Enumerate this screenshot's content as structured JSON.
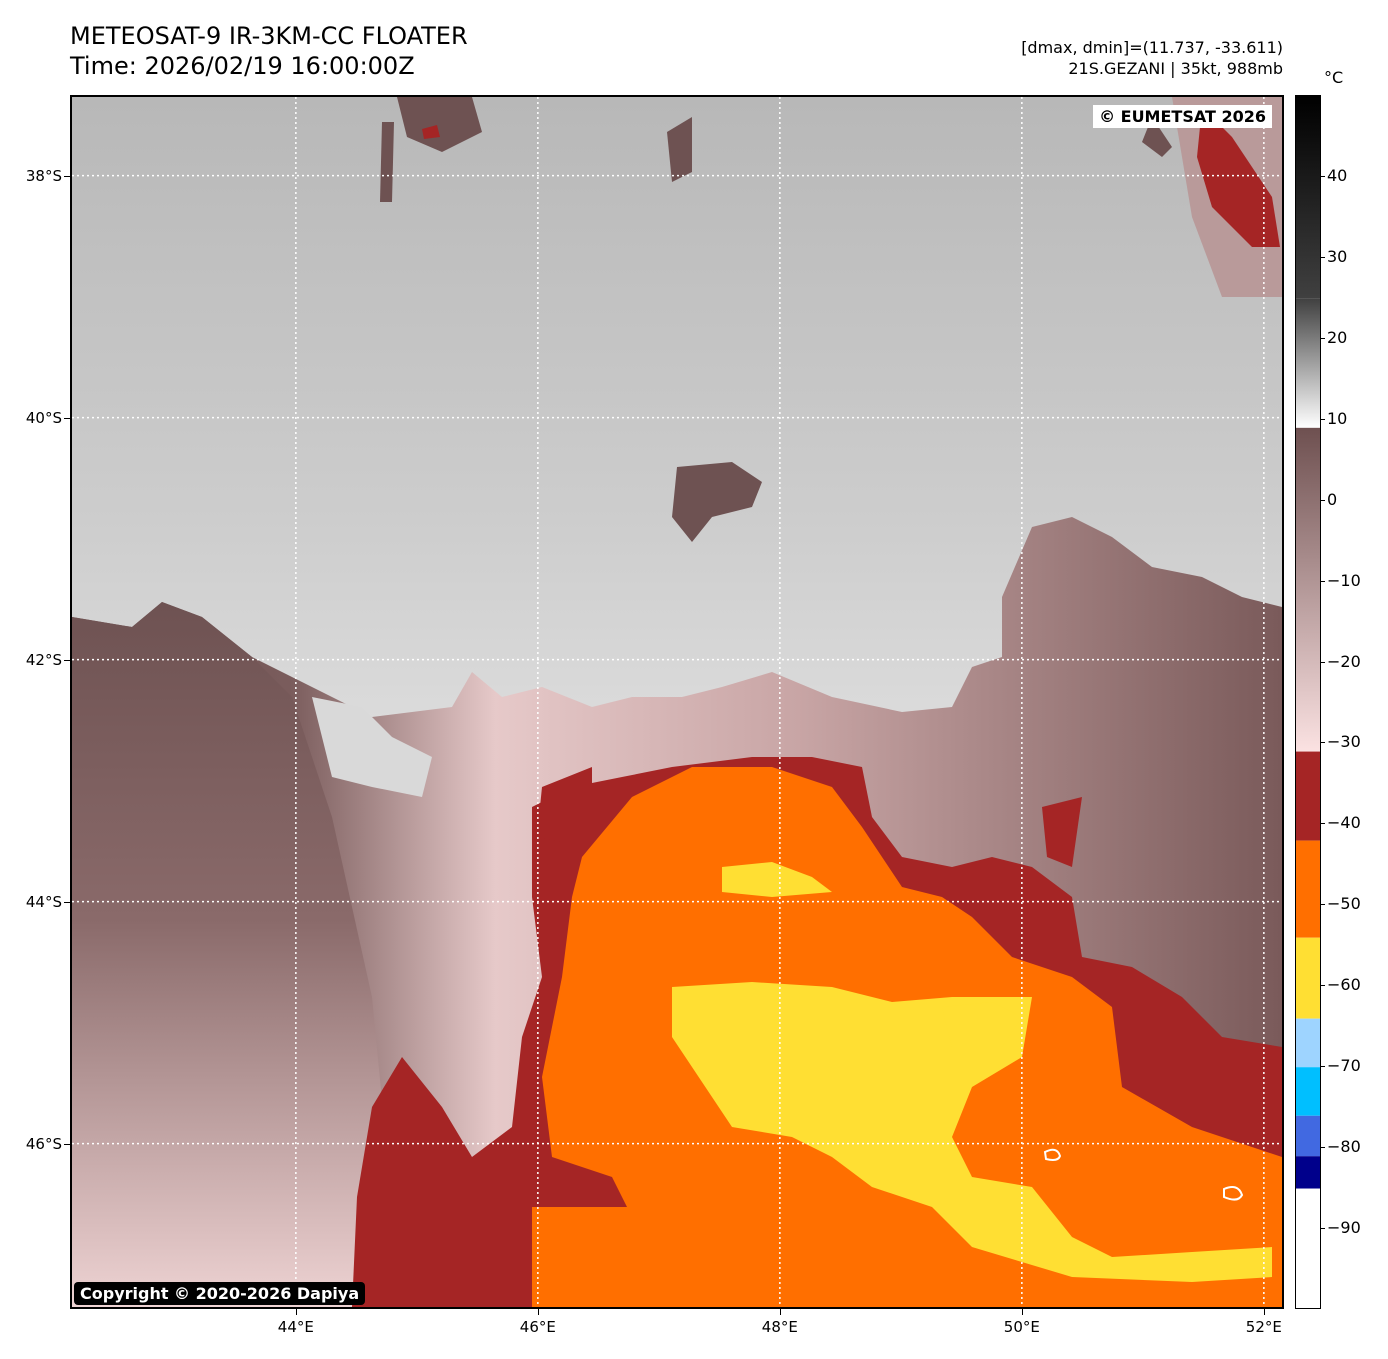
{
  "header": {
    "title_line1": "METEOSAT-9 IR-3KM-CC FLOATER",
    "title_line2": "Time: 2026/02/19 16:00:00Z",
    "info_line1": "[dmax, dmin]=(11.737, -33.611)",
    "info_line2": "21S.GEZANI | 35kt, 988mb"
  },
  "map": {
    "eumetsat_credit": "© EUMETSAT 2026",
    "copyright": "Copyright © 2020-2026 Dapiya",
    "lat_ticks": [
      {
        "value": -38,
        "label": "38°S"
      },
      {
        "value": -40,
        "label": "40°S"
      },
      {
        "value": -42,
        "label": "42°S"
      },
      {
        "value": -44,
        "label": "44°S"
      },
      {
        "value": -46,
        "label": "46°S"
      }
    ],
    "lon_ticks": [
      {
        "value": 44,
        "label": "44°E"
      },
      {
        "value": 46,
        "label": "46°E"
      },
      {
        "value": 48,
        "label": "48°E"
      },
      {
        "value": 50,
        "label": "50°E"
      },
      {
        "value": 52,
        "label": "52°E"
      }
    ],
    "extent": {
      "lon_min": 42.15,
      "lon_max": 52.15,
      "lat_max": -37.35,
      "lat_min": -47.35
    },
    "colors": {
      "clear_sky": "#d3d3d3",
      "low_cloud": "#6e5252",
      "mid_cloud": "#e8c8c8",
      "cold_tops": "#a52525",
      "very_cold": "#ff6f00",
      "coldest": "#ffe033",
      "gridline": "#ffffff"
    }
  },
  "colorbar": {
    "unit": "°C",
    "range": [
      -100,
      50
    ],
    "ticks": [
      {
        "value": 40,
        "label": "40"
      },
      {
        "value": 30,
        "label": "30"
      },
      {
        "value": 20,
        "label": "20"
      },
      {
        "value": 10,
        "label": "10"
      },
      {
        "value": 0,
        "label": "0"
      },
      {
        "value": -10,
        "label": "−10"
      },
      {
        "value": -20,
        "label": "−20"
      },
      {
        "value": -30,
        "label": "−30"
      },
      {
        "value": -40,
        "label": "−40"
      },
      {
        "value": -50,
        "label": "−50"
      },
      {
        "value": -60,
        "label": "−60"
      },
      {
        "value": -70,
        "label": "−70"
      },
      {
        "value": -80,
        "label": "−80"
      },
      {
        "value": -90,
        "label": "−90"
      }
    ],
    "segments": [
      {
        "from": 50,
        "to": 25,
        "color_top": "#000000",
        "color_bottom": "#404040"
      },
      {
        "from": 25,
        "to": 9,
        "color_top": "#404040",
        "color_bottom": "#ffffff"
      },
      {
        "from": 9,
        "to": -31,
        "color_top": "#6e5050",
        "color_bottom": "#fbe2e2"
      },
      {
        "from": -31,
        "to": -42,
        "color_top": "#a52525",
        "color_bottom": "#a52525"
      },
      {
        "from": -42,
        "to": -54,
        "color_top": "#ff6f00",
        "color_bottom": "#ff6f00"
      },
      {
        "from": -54,
        "to": -64,
        "color_top": "#ffdf33",
        "color_bottom": "#ffdf33"
      },
      {
        "from": -64,
        "to": -70,
        "color_top": "#9ed4ff",
        "color_bottom": "#9ed4ff"
      },
      {
        "from": -70,
        "to": -76,
        "color_top": "#00bfff",
        "color_bottom": "#00bfff"
      },
      {
        "from": -76,
        "to": -81,
        "color_top": "#4169e1",
        "color_bottom": "#4169e1"
      },
      {
        "from": -81,
        "to": -85,
        "color_top": "#00008b",
        "color_bottom": "#00008b"
      },
      {
        "from": -85,
        "to": -100,
        "color_top": "#ffffff",
        "color_bottom": "#ffffff"
      }
    ]
  }
}
